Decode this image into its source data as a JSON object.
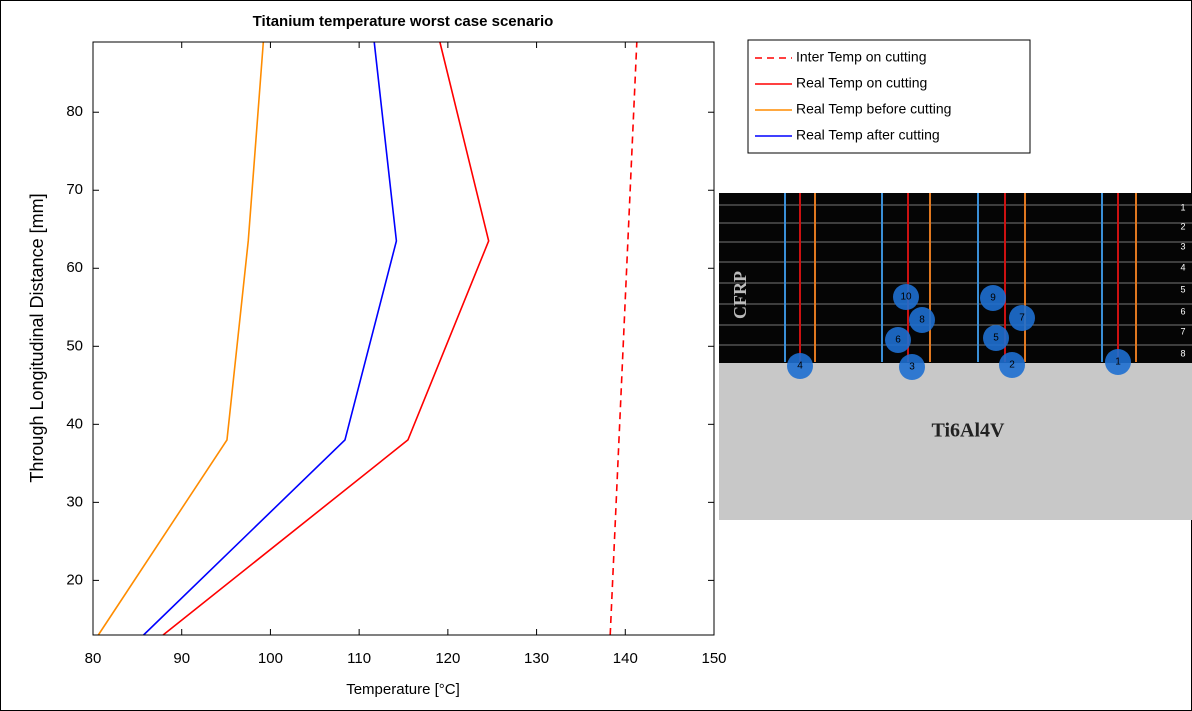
{
  "chart_data": {
    "type": "line",
    "title": "Titanium temperature worst case scenario",
    "xlabel": "Temperature [°C]",
    "ylabel": "Through Longitudinal Distance [mm]",
    "xlim": [
      80,
      150
    ],
    "xticks": [
      80,
      90,
      100,
      110,
      120,
      130,
      140,
      150
    ],
    "ylim": [
      13,
      89
    ],
    "yticks": [
      20,
      30,
      40,
      50,
      60,
      70,
      80
    ],
    "legend": "outside-right",
    "series": [
      {
        "name": "Inter Temp on cutting",
        "color": "#ff0000",
        "linestyle": "dashed",
        "x": [
          138.3,
          141.3
        ],
        "y": [
          13,
          89
        ]
      },
      {
        "name": "Real Temp on cutting",
        "color": "#ff0000",
        "linestyle": "solid",
        "x": [
          87.9,
          115.5,
          124.6,
          119.1
        ],
        "y": [
          13,
          38,
          63.5,
          89
        ]
      },
      {
        "name": "Real Temp before cutting",
        "color": "#ff8c00",
        "linestyle": "solid",
        "x": [
          80.6,
          95.1,
          97.5,
          99.2
        ],
        "y": [
          13,
          38,
          63.5,
          89
        ]
      },
      {
        "name": "Real Temp after cutting",
        "color": "#0000ff",
        "linestyle": "solid",
        "x": [
          85.7,
          108.4,
          114.2,
          111.7
        ],
        "y": [
          13,
          38,
          63.5,
          89
        ]
      }
    ]
  },
  "inset": {
    "top_label": "CFRP",
    "bottom_label": "Ti6Al4V",
    "layers": [
      "1",
      "2",
      "3",
      "4",
      "5",
      "6",
      "7",
      "8"
    ],
    "markers": [
      "1",
      "2",
      "3",
      "4",
      "5",
      "6",
      "7",
      "8",
      "9",
      "10"
    ]
  }
}
